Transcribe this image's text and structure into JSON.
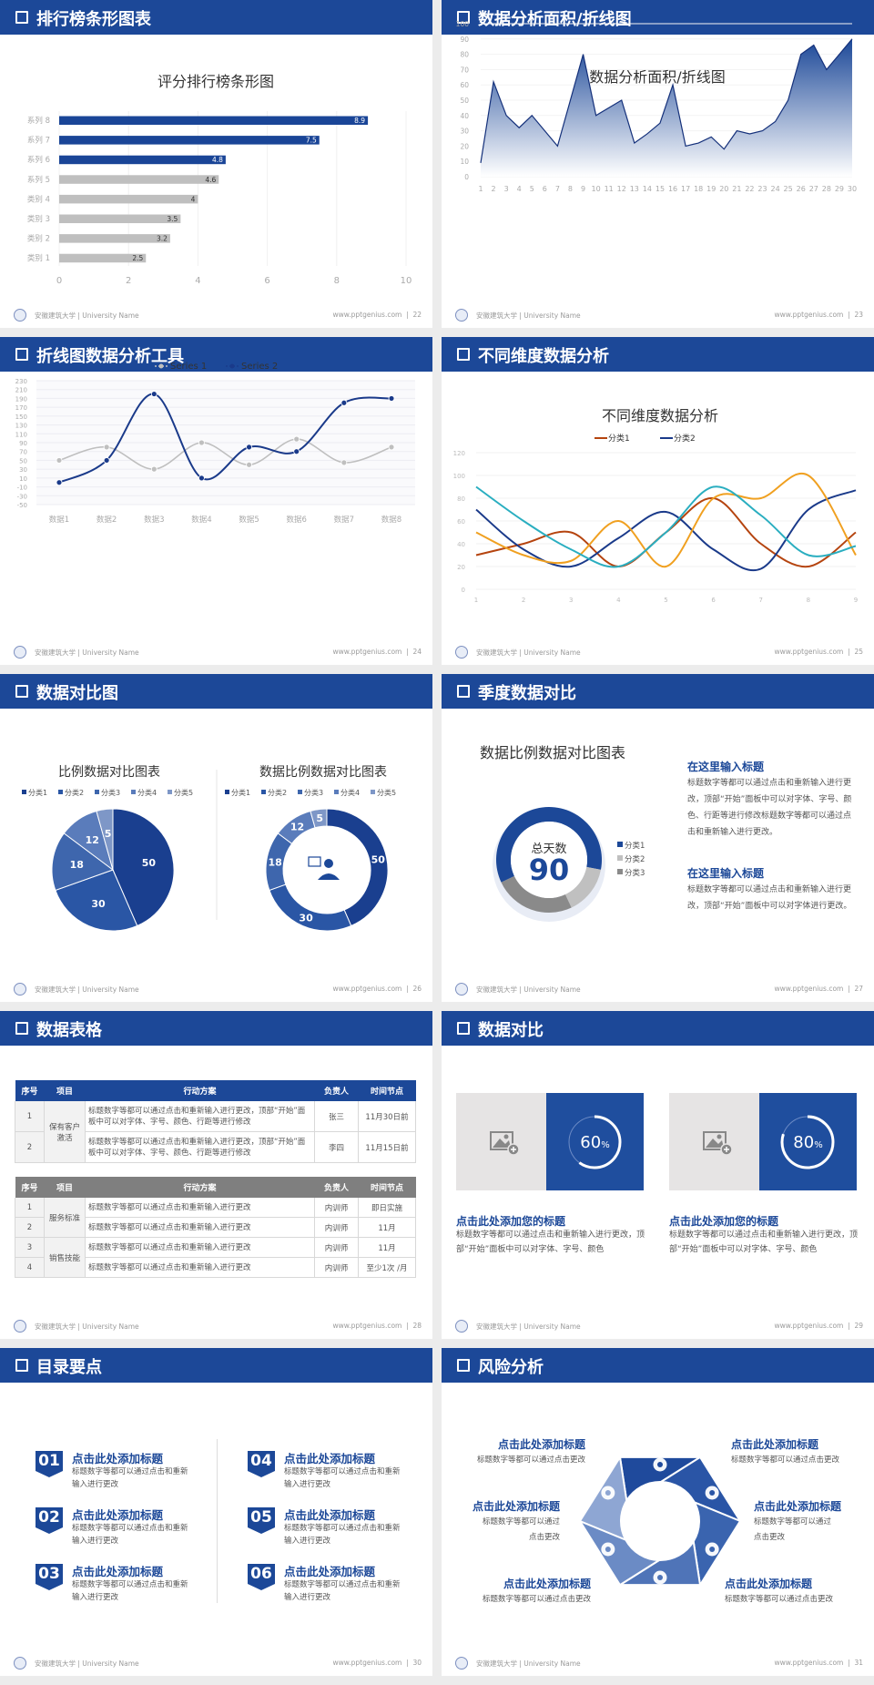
{
  "footer": {
    "university": "安徽建筑大学 | University Name",
    "site": "www.pptgenius.com"
  },
  "colors": {
    "header": "#1c4898",
    "accent": "#1c4898",
    "gray_bar": "#bfbfbf"
  },
  "slides": {
    "s22": {
      "header": "排行榜条形图表",
      "page": "22"
    },
    "s23": {
      "header": "数据分析面积/折线图",
      "page": "23"
    },
    "s24": {
      "header": "折线图数据分析工具",
      "page": "24"
    },
    "s25": {
      "header": "不同维度数据分析",
      "page": "25"
    },
    "s26": {
      "header": "数据对比图",
      "page": "26"
    },
    "s27": {
      "header": "季度数据对比",
      "page": "27",
      "text_blocks": [
        {
          "title": "在这里输入标题",
          "body": "标题数字等都可以通过点击和重新输入进行更改，顶部“开始”面板中可以对字体、字号、颜色、行距等进行修改标题数字等都可以通过点击和重新输入进行更改。"
        },
        {
          "title": "在这里输入标题",
          "body": "标题数字等都可以通过点击和重新输入进行更改，顶部“开始”面板中可以对字体进行更改。"
        }
      ]
    },
    "s28": {
      "header": "数据表格",
      "page": "28",
      "table1": {
        "headers": [
          "序号",
          "项目",
          "行动方案",
          "负责人",
          "时间节点"
        ],
        "group": "保有客户激活",
        "rows": [
          {
            "no": "1",
            "plan": "标题数字等都可以通过点击和重新输入进行更改，顶部“开始”面板中可以对字体、字号、颜色、行距等进行修改",
            "owner": "张三",
            "time": "11月30日前"
          },
          {
            "no": "2",
            "plan": "标题数字等都可以通过点击和重新输入进行更改，顶部“开始”面板中可以对字体、字号、颜色、行距等进行修改",
            "owner": "李四",
            "time": "11月15日前"
          }
        ]
      },
      "table2": {
        "headers": [
          "序号",
          "项目",
          "行动方案",
          "负责人",
          "时间节点"
        ],
        "groups": [
          "服务标准",
          "销售技能"
        ],
        "rows": [
          {
            "no": "1",
            "plan": "标题数字等都可以通过点击和重新输入进行更改",
            "owner": "内训师",
            "time": "即日实施"
          },
          {
            "no": "2",
            "plan": "标题数字等都可以通过点击和重新输入进行更改",
            "owner": "内训师",
            "time": "11月"
          },
          {
            "no": "3",
            "plan": "标题数字等都可以通过点击和重新输入进行更改",
            "owner": "内训师",
            "time": "11月"
          },
          {
            "no": "4",
            "plan": "标题数字等都可以通过点击和重新输入进行更改",
            "owner": "内训师",
            "time": "至少1次 /月"
          }
        ]
      }
    },
    "s29": {
      "header": "数据对比",
      "page": "29",
      "cards": [
        {
          "percent": 60,
          "value": "60",
          "unit": "%",
          "title": "点击此处添加您的标题",
          "body": "标题数字等都可以通过点击和重新输入进行更改，顶部“开始”面板中可以对字体、字号、颜色"
        },
        {
          "percent": 80,
          "value": "80",
          "unit": "%",
          "title": "点击此处添加您的标题",
          "body": "标题数字等都可以通过点击和重新输入进行更改，顶部“开始”面板中可以对字体、字号、颜色"
        }
      ]
    },
    "s30": {
      "header": "目录要点",
      "page": "30",
      "items": [
        {
          "num": "01",
          "title": "点击此处添加标题",
          "body": "标题数字等都可以通过点击和重新输入进行更改"
        },
        {
          "num": "02",
          "title": "点击此处添加标题",
          "body": "标题数字等都可以通过点击和重新输入进行更改"
        },
        {
          "num": "03",
          "title": "点击此处添加标题",
          "body": "标题数字等都可以通过点击和重新输入进行更改"
        },
        {
          "num": "04",
          "title": "点击此处添加标题",
          "body": "标题数字等都可以通过点击和重新输入进行更改"
        },
        {
          "num": "05",
          "title": "点击此处添加标题",
          "body": "标题数字等都可以通过点击和重新输入进行更改"
        },
        {
          "num": "06",
          "title": "点击此处添加标题",
          "body": "标题数字等都可以通过点击和重新输入进行更改"
        }
      ]
    },
    "s31": {
      "header": "风险分析",
      "page": "31",
      "items": [
        {
          "title": "点击此处添加标题",
          "body": "标题数字等都可以通过点击更改"
        },
        {
          "title": "点击此处添加标题",
          "body": "标题数字等都可以通过点击更改"
        },
        {
          "title": "点击此处添加标题",
          "body": "标题数字等都可以通过点击更改"
        },
        {
          "title": "点击此处添加标题",
          "body": "标题数字等都可以通过点击更改"
        },
        {
          "title": "点击此处添加标题",
          "body": "标题数字等都可以通过点击更改"
        },
        {
          "title": "点击此处添加标题",
          "body": "标题数字等都可以通过点击更改"
        }
      ],
      "icons": [
        "money-bag",
        "coins",
        "users",
        "pie-chart",
        "building",
        "hand-yen"
      ]
    }
  },
  "chart_data": [
    {
      "id": "bar22",
      "type": "bar",
      "orientation": "horizontal",
      "title": "评分排行榜条形图",
      "categories": [
        "系列 8",
        "系列 7",
        "系列 6",
        "系列 5",
        "类别 4",
        "类别 3",
        "类别 2",
        "类别 1"
      ],
      "values": [
        8.9,
        7.5,
        4.8,
        4.6,
        4,
        3.5,
        3.2,
        2.5
      ],
      "highlight_top": 3,
      "xlim": [
        0,
        10
      ],
      "xticks": [
        "0",
        "2",
        "4",
        "6",
        "8",
        "10"
      ]
    },
    {
      "id": "area23",
      "type": "area",
      "title": "数据分析面积/折线图",
      "x": [
        1,
        2,
        3,
        4,
        5,
        6,
        7,
        8,
        9,
        10,
        11,
        12,
        13,
        14,
        15,
        16,
        17,
        18,
        19,
        20,
        21,
        22,
        23,
        24,
        25,
        26,
        27,
        28,
        29,
        30
      ],
      "values": [
        9,
        62,
        40,
        32,
        40,
        30,
        20,
        50,
        80,
        40,
        45,
        50,
        22,
        28,
        35,
        60,
        20,
        22,
        26,
        18,
        30,
        28,
        30,
        36,
        50,
        80,
        86,
        70,
        80,
        90
      ],
      "ylim": [
        0,
        100
      ],
      "yticks": [
        "0",
        "10",
        "20",
        "30",
        "40",
        "50",
        "60",
        "70",
        "80",
        "90",
        "100"
      ]
    },
    {
      "id": "line24",
      "type": "line",
      "smooth": true,
      "title": "折线图数据分析工具",
      "categories": [
        "数据1",
        "数据2",
        "数据3",
        "数据4",
        "数据5",
        "数据6",
        "数据7",
        "数据8"
      ],
      "series": [
        {
          "name": "Series 1",
          "color": "#bfbfbf",
          "values": [
            50,
            80,
            30,
            90,
            40,
            98,
            45,
            80
          ]
        },
        {
          "name": "Series 2",
          "color": "#1a3a8a",
          "values": [
            0,
            50,
            200,
            10,
            80,
            70,
            180,
            190
          ]
        }
      ],
      "ylim": [
        -50,
        230
      ],
      "yticks": [
        "-50",
        "-30",
        "-10",
        "10",
        "30",
        "50",
        "70",
        "90",
        "110",
        "130",
        "150",
        "170",
        "190",
        "210",
        "230"
      ],
      "legend": "top"
    },
    {
      "id": "line25",
      "type": "line",
      "smooth": true,
      "title": "不同维度数据分析",
      "x": [
        "1",
        "2",
        "3",
        "4",
        "5",
        "6",
        "7",
        "8",
        "9"
      ],
      "series": [
        {
          "name": "分类1",
          "color": "#b5440f",
          "values": [
            30,
            40,
            50,
            20,
            50,
            80,
            40,
            20,
            50
          ]
        },
        {
          "name": "分类2",
          "color": "#1a3a8a",
          "values": [
            70,
            35,
            20,
            45,
            68,
            35,
            18,
            70,
            87
          ]
        },
        {
          "color": "#f0a020",
          "values": [
            50,
            30,
            25,
            60,
            20,
            80,
            80,
            100,
            30
          ]
        },
        {
          "color": "#2aaec0",
          "values": [
            90,
            60,
            35,
            20,
            50,
            90,
            65,
            30,
            38
          ]
        }
      ],
      "ylim": [
        0,
        120
      ],
      "yticks": [
        "0",
        "20",
        "40",
        "60",
        "80",
        "100",
        "120"
      ],
      "legend": "top"
    },
    {
      "id": "pie26",
      "type": "pie",
      "title": "比例数据对比图表",
      "labels": [
        "分类1",
        "分类2",
        "分类3",
        "分类4",
        "分类5"
      ],
      "values": [
        50,
        30,
        18,
        12,
        5
      ],
      "colors": [
        "#1a3f8f",
        "#2a56a5",
        "#3e66ad",
        "#5a7cbb",
        "#7e97c7"
      ],
      "legend": "top"
    },
    {
      "id": "donut26",
      "type": "pie",
      "donut": true,
      "title": "数据比例数据对比图表",
      "labels": [
        "分类1",
        "分类2",
        "分类3",
        "分类4",
        "分类5"
      ],
      "values": [
        50,
        30,
        18,
        12,
        5
      ],
      "colors": [
        "#1a3f8f",
        "#2a56a5",
        "#3e66ad",
        "#5a7cbb",
        "#7e97c7"
      ],
      "legend": "top"
    },
    {
      "id": "donut27",
      "type": "pie",
      "donut": true,
      "title": "数据比例数据对比图表",
      "center_label": "总天数",
      "center_value": "90",
      "labels": [
        "分类1",
        "分类2",
        "分类3"
      ],
      "values": [
        60,
        15,
        25
      ],
      "colors": [
        "#1c4898",
        "#c0c0c0",
        "#8a8a8a"
      ],
      "legend": "right"
    }
  ]
}
